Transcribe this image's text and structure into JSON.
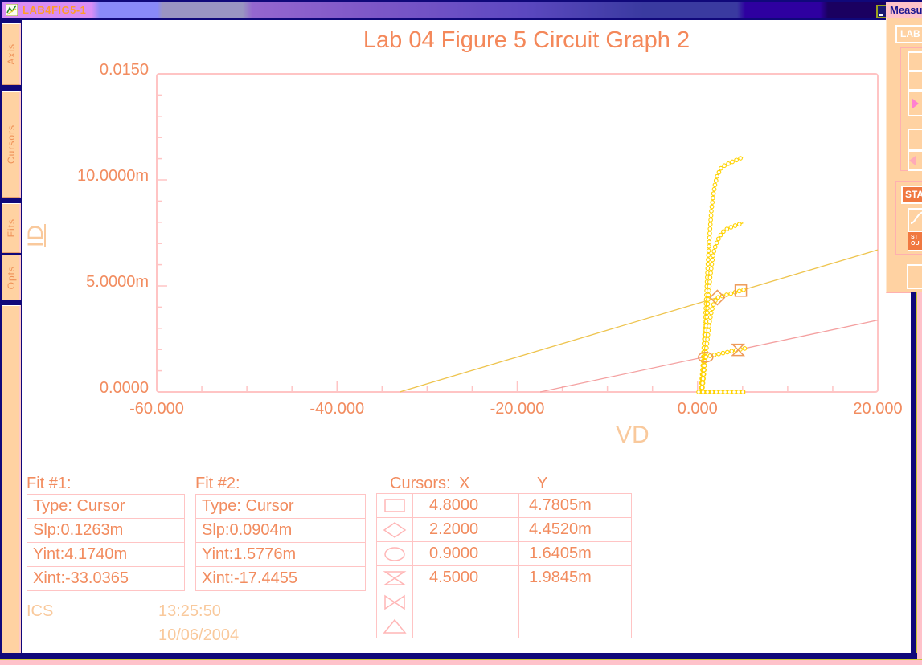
{
  "titlebar": {
    "title": "LAB4FIG5-1"
  },
  "sidebar": {
    "tabs": [
      "Axis",
      "Cursors",
      "Fits",
      "Opts"
    ]
  },
  "chart_data": {
    "type": "line",
    "title": "Lab 04 Figure 5 Circuit Graph 2",
    "xlabel": "VD",
    "ylabel": "ID",
    "xlim": [
      -60,
      20
    ],
    "ylim": [
      0,
      0.015
    ],
    "grid": false,
    "x_ticks": [
      {
        "v": -60,
        "label": "-60.000"
      },
      {
        "v": -40,
        "label": "-40.000"
      },
      {
        "v": -20,
        "label": "-20.000"
      },
      {
        "v": 0,
        "label": "0.000"
      },
      {
        "v": 20,
        "label": "20.000"
      }
    ],
    "x_minor_step": 5,
    "y_ticks": [
      {
        "v": 0,
        "label": "0.0000"
      },
      {
        "v": 0.005,
        "label": "5.0000m"
      },
      {
        "v": 0.01,
        "label": "10.0000m"
      },
      {
        "v": 0.015,
        "label": "0.0150"
      }
    ],
    "y_minor_step": 0.001,
    "series": [
      {
        "name": "id-curve-1",
        "color": "#ffd200",
        "width": 1.4,
        "markers": true,
        "points": [
          [
            0.35,
            0
          ],
          [
            0.55,
            0.001
          ],
          [
            0.75,
            0.0025
          ],
          [
            0.95,
            0.0042
          ],
          [
            1.15,
            0.006
          ],
          [
            1.35,
            0.0075
          ],
          [
            1.55,
            0.0086
          ],
          [
            1.75,
            0.0093
          ],
          [
            1.95,
            0.0098
          ],
          [
            2.2,
            0.0102
          ],
          [
            2.6,
            0.01055
          ],
          [
            3.0,
            0.01068
          ],
          [
            3.5,
            0.01078
          ],
          [
            4.0,
            0.01088
          ],
          [
            4.5,
            0.01097
          ],
          [
            4.9,
            0.01105
          ],
          [
            5.05,
            0.01108
          ]
        ]
      },
      {
        "name": "id-curve-2",
        "color": "#ffd200",
        "width": 1.4,
        "markers": true,
        "points": [
          [
            0.4,
            0
          ],
          [
            0.6,
            0.001
          ],
          [
            0.8,
            0.0022
          ],
          [
            1.0,
            0.0034
          ],
          [
            1.2,
            0.0045
          ],
          [
            1.4,
            0.0054
          ],
          [
            1.6,
            0.0061
          ],
          [
            1.8,
            0.0066
          ],
          [
            2.0,
            0.0069
          ],
          [
            2.3,
            0.0072
          ],
          [
            2.7,
            0.0075
          ],
          [
            3.1,
            0.00765
          ],
          [
            3.6,
            0.00775
          ],
          [
            4.1,
            0.00783
          ],
          [
            4.6,
            0.0079
          ],
          [
            5.05,
            0.00797
          ]
        ]
      },
      {
        "name": "id-curve-3",
        "color": "#ffd200",
        "width": 1.4,
        "markers": true,
        "points": [
          [
            0.5,
            0
          ],
          [
            0.7,
            0.0008
          ],
          [
            0.9,
            0.0017
          ],
          [
            1.1,
            0.0025
          ],
          [
            1.3,
            0.0032
          ],
          [
            1.5,
            0.0037
          ],
          [
            1.7,
            0.00405
          ],
          [
            1.9,
            0.00425
          ],
          [
            2.1,
            0.00441
          ],
          [
            2.2,
            0.004452
          ],
          [
            2.6,
            0.004503
          ],
          [
            3.0,
            0.004553
          ],
          [
            3.5,
            0.004616
          ],
          [
            4.0,
            0.004679
          ],
          [
            4.4,
            0.00473
          ],
          [
            4.8,
            0.0047805
          ],
          [
            5.2,
            0.004831
          ]
        ]
      },
      {
        "name": "id-curve-4",
        "color": "#ffd200",
        "width": 1.4,
        "markers": true,
        "points": [
          [
            0.45,
            0
          ],
          [
            0.58,
            0.0005
          ],
          [
            0.7,
            0.001
          ],
          [
            0.8,
            0.0013
          ],
          [
            0.9,
            0.0016405
          ],
          [
            1.05,
            0.00168
          ],
          [
            1.3,
            0.001695
          ],
          [
            1.6,
            0.001722
          ],
          [
            2.0,
            0.001758
          ],
          [
            2.5,
            0.001804
          ],
          [
            3.0,
            0.001849
          ],
          [
            3.5,
            0.001894
          ],
          [
            4.0,
            0.001939
          ],
          [
            4.5,
            0.0019845
          ],
          [
            5.0,
            0.00203
          ],
          [
            5.25,
            0.002052
          ]
        ]
      },
      {
        "name": "id-curve-5-zero",
        "color": "#ffd200",
        "width": 4,
        "markers": true,
        "points": [
          [
            0.12,
            0
          ],
          [
            2.0,
            0
          ],
          [
            3.5,
            0
          ],
          [
            5.3,
            0
          ]
        ]
      }
    ],
    "fit_lines": [
      {
        "name": "Fit #1",
        "color": "#eec44e",
        "slope": 0.0001263,
        "yint": 0.004174,
        "xint": -33.0365,
        "x1": -33.0365,
        "x2": 20
      },
      {
        "name": "Fit #2",
        "color": "#f4a0a0",
        "slope": 9.04e-05,
        "yint": 0.0015776,
        "xint": -17.4455,
        "x1": -17.4455,
        "x2": 20
      }
    ],
    "cursor_markers": [
      {
        "shape": "square",
        "x": 4.8,
        "y": 0.0047805
      },
      {
        "shape": "diamond",
        "x": 2.2,
        "y": 0.004452
      },
      {
        "shape": "ellipse",
        "x": 0.9,
        "y": 0.0016405
      },
      {
        "shape": "hourglass",
        "x": 4.5,
        "y": 0.0019845
      }
    ]
  },
  "fits": [
    {
      "label": "Fit #1:",
      "rows": [
        "Type: Cursor",
        "Slp:0.1263m",
        "Yint:4.1740m",
        "Xint:-33.0365"
      ]
    },
    {
      "label": "Fit #2:",
      "rows": [
        "Type: Cursor",
        "Slp:0.0904m",
        "Yint:1.5776m",
        "Xint:-17.4455"
      ]
    }
  ],
  "cursor_table": {
    "header": "Cursors:",
    "x_header": "X",
    "y_header": "Y",
    "rows": [
      {
        "symbol": "square",
        "x": "4.8000",
        "y": "4.7805m"
      },
      {
        "symbol": "diamond",
        "x": "2.2000",
        "y": "4.4520m"
      },
      {
        "symbol": "ellipse",
        "x": "0.9000",
        "y": "1.6405m"
      },
      {
        "symbol": "hourglass",
        "x": "4.5000",
        "y": "1.9845m"
      },
      {
        "symbol": "bowtie",
        "x": "",
        "y": ""
      },
      {
        "symbol": "triangle",
        "x": "",
        "y": ""
      }
    ]
  },
  "footer": {
    "app": "ICS",
    "time": "13:25:50",
    "date": "10/06/2004"
  },
  "measure_window": {
    "title": "Measu",
    "lab_label": "LAB",
    "sta_label": "STA",
    "small_button_lines": [
      "ST",
      "OU"
    ]
  },
  "colors": {
    "accent_text": "#f28c5f",
    "peach_text": "#f9c99c",
    "plot_border": "#ffc4c4",
    "curve": "#ffd200",
    "cursor_marker": "#ee9a58",
    "panel": "#ffd2a2",
    "navy": "#10087a"
  }
}
